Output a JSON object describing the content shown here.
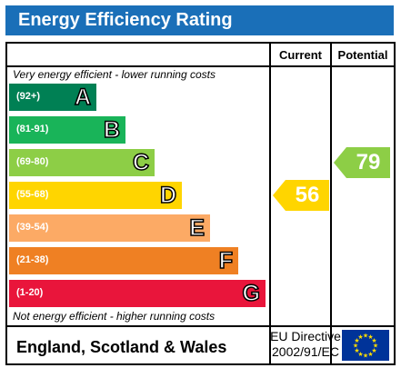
{
  "title": "Energy Efficiency Rating",
  "headers": {
    "current": "Current",
    "potential": "Potential"
  },
  "top_note": "Very energy efficient - lower running costs",
  "bottom_note": "Not energy efficient - higher running costs",
  "footer": {
    "country": "England, Scotland & Wales",
    "directive_line1": "EU Directive",
    "directive_line2": "2002/91/EC"
  },
  "colors": {
    "title_bg": "#1a6fb8",
    "band_A": "#008054",
    "band_B": "#19b459",
    "band_C": "#8dce46",
    "band_D": "#ffd500",
    "band_E": "#fcaa65",
    "band_F": "#ef8023",
    "band_G": "#e9153b",
    "eu_flag": "#003399",
    "eu_stars": "#ffdd00"
  },
  "chart_data": {
    "type": "bar",
    "categories": [
      "A",
      "B",
      "C",
      "D",
      "E",
      "F",
      "G"
    ],
    "ranges": [
      "(92+)",
      "(81-91)",
      "(69-80)",
      "(55-68)",
      "(39-54)",
      "(21-38)",
      "(1-20)"
    ],
    "current": {
      "value": "56",
      "band": "D"
    },
    "potential": {
      "value": "79",
      "band": "C"
    }
  }
}
